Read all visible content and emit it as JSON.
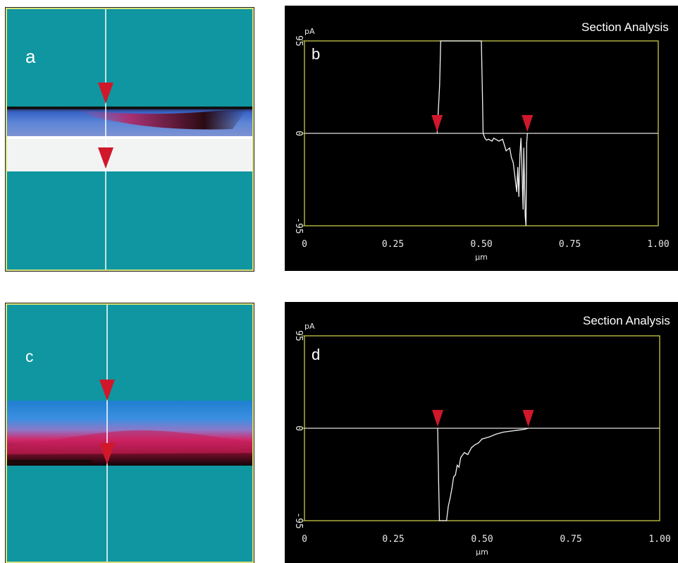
{
  "colors": {
    "image_background": "#0f96a0",
    "marker_red": "#d0182a",
    "frame_yellow": "#c8c84a",
    "trace_white": "#f2f2f2",
    "plot_background": "#000000"
  },
  "panels": {
    "a": {
      "letter": "a"
    },
    "b": {
      "letter": "b",
      "title": "Section Analysis"
    },
    "c": {
      "letter": "c"
    },
    "d": {
      "letter": "d",
      "title": "Section Analysis"
    }
  },
  "chart_data": [
    {
      "panel": "b",
      "type": "line",
      "title": "Section Analysis",
      "xlabel": "µm",
      "ylabel": "pA",
      "xlim": [
        0,
        1.0
      ],
      "ylim": [
        -95,
        95
      ],
      "x_ticks": [
        "0",
        "0.25",
        "0.50",
        "0.75",
        "1.00"
      ],
      "y_ticks": [
        "95",
        "0",
        "-95"
      ],
      "zero_line": true,
      "cursor_markers_x": [
        0.375,
        0.63
      ],
      "series": [
        {
          "x": [
            0.375,
            0.382,
            0.385,
            0.4,
            0.45,
            0.5,
            0.503,
            0.505,
            0.51,
            0.515,
            0.52,
            0.53,
            0.535,
            0.54,
            0.55,
            0.56,
            0.565,
            0.57,
            0.58,
            0.585,
            0.59,
            0.595,
            0.6,
            0.603,
            0.606,
            0.609,
            0.612,
            0.615,
            0.618,
            0.62,
            0.622,
            0.624,
            0.626,
            0.628,
            0.63
          ],
          "y": [
            0,
            50,
            95,
            95,
            95,
            95,
            40,
            0,
            -5,
            -7,
            -6,
            -8,
            -5,
            -6,
            -8,
            -6,
            -12,
            -18,
            -15,
            -25,
            -30,
            -45,
            -60,
            -35,
            -65,
            -22,
            -5,
            -40,
            -78,
            -15,
            -50,
            -85,
            -95,
            -10,
            0
          ]
        }
      ]
    },
    {
      "panel": "d",
      "type": "line",
      "title": "Section Analysis",
      "xlabel": "µm",
      "ylabel": "pA",
      "xlim": [
        0,
        1.0
      ],
      "ylim": [
        -95,
        95
      ],
      "x_ticks": [
        "0",
        "0.25",
        "0.50",
        "0.75",
        "1.00"
      ],
      "y_ticks": [
        "95",
        "0",
        "-95"
      ],
      "zero_line": true,
      "cursor_markers_x": [
        0.375,
        0.63
      ],
      "series": [
        {
          "x": [
            0.375,
            0.378,
            0.38,
            0.39,
            0.4,
            0.405,
            0.41,
            0.415,
            0.42,
            0.425,
            0.43,
            0.435,
            0.44,
            0.45,
            0.46,
            0.47,
            0.48,
            0.49,
            0.5,
            0.52,
            0.54,
            0.56,
            0.58,
            0.6,
            0.62,
            0.63
          ],
          "y": [
            0,
            -60,
            -95,
            -95,
            -95,
            -80,
            -72,
            -62,
            -50,
            -48,
            -38,
            -40,
            -30,
            -25,
            -27,
            -20,
            -17,
            -15,
            -11,
            -9,
            -6,
            -4,
            -3,
            -2,
            -1,
            0
          ]
        }
      ]
    }
  ],
  "images": [
    {
      "panel": "a",
      "marker_top_label": "",
      "cursor": "vertical-line"
    },
    {
      "panel": "c",
      "marker_top_label": "",
      "cursor": "vertical-line"
    }
  ]
}
